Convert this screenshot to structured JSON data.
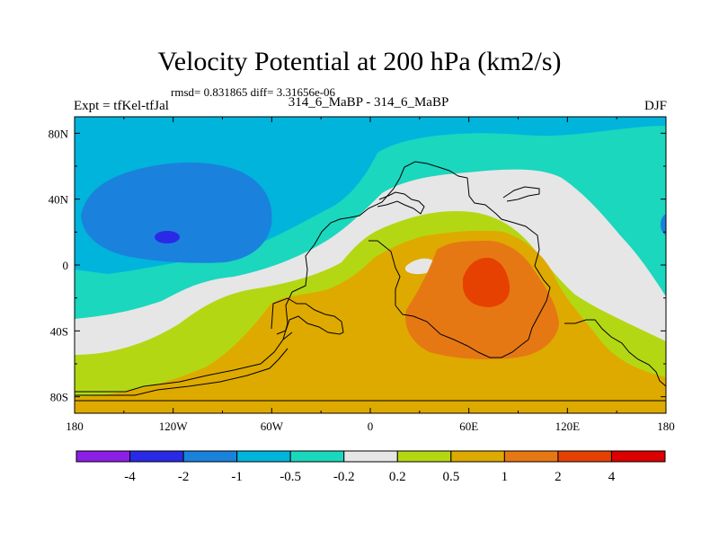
{
  "title": "Velocity Potential at 200 hPa (km2/s)",
  "stats": "rmsd= 0.831865 diff= 3.31656e-06",
  "left_label": "Expt = tfKel-tfJal",
  "center_label": "314_6_MaBP - 314_6_MaBP",
  "right_label": "DJF",
  "chart_data": {
    "type": "heatmap",
    "projection": "cylindrical equidistant",
    "variable": "Velocity Potential at 200 hPa",
    "units": "km2/s",
    "lon_range": [
      -180,
      180
    ],
    "lat_range": [
      -90,
      90
    ],
    "x_ticks": [
      {
        "value": -180,
        "label": "180"
      },
      {
        "value": -120,
        "label": "120W"
      },
      {
        "value": -60,
        "label": "60W"
      },
      {
        "value": 0,
        "label": "0"
      },
      {
        "value": 60,
        "label": "60E"
      },
      {
        "value": 120,
        "label": "120E"
      },
      {
        "value": 180,
        "label": "180"
      }
    ],
    "y_ticks": [
      {
        "value": 80,
        "label": "80N"
      },
      {
        "value": 40,
        "label": "40N"
      },
      {
        "value": 0,
        "label": "0"
      },
      {
        "value": -40,
        "label": "40S"
      },
      {
        "value": -80,
        "label": "80S"
      }
    ],
    "contour_levels": [
      "-4",
      "-2",
      "-1",
      "-0.5",
      "-0.2",
      "0.2",
      "0.5",
      "1",
      "2",
      "4"
    ],
    "colors": [
      "#8c1fe6",
      "#2a2ae6",
      "#1a82dc",
      "#00b4dc",
      "#1ad7be",
      "#e6e6e6",
      "#b4d714",
      "#deaa00",
      "#e67814",
      "#e64100",
      "#dc0000"
    ],
    "grid": false
  }
}
